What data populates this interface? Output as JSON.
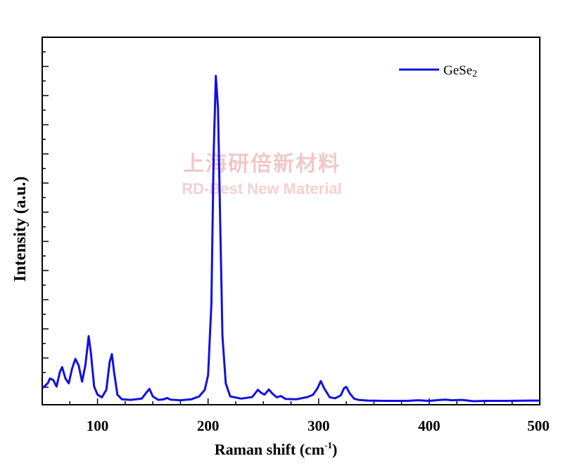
{
  "chart_data": {
    "type": "line",
    "title": "",
    "xlabel": "Raman shift (cm",
    "xlabel_sup": "-1",
    "xlabel_close": ")",
    "ylabel": "Intensity (a.u.)",
    "xlim": [
      50,
      500
    ],
    "ylim": [
      0,
      100
    ],
    "x_ticks": [
      100,
      200,
      300,
      400,
      500
    ],
    "y_ticks_shown": false,
    "grid": false,
    "legend_position": "top-right",
    "series": [
      {
        "name": "GeSe2",
        "color": "#1010e0",
        "points": [
          [
            50,
            4.0
          ],
          [
            55,
            5.5
          ],
          [
            57,
            7.0
          ],
          [
            60,
            6.5
          ],
          [
            63,
            4.5
          ],
          [
            66,
            9.0
          ],
          [
            68,
            10.5
          ],
          [
            71,
            7.0
          ],
          [
            74,
            5.5
          ],
          [
            77,
            10.0
          ],
          [
            80,
            13.0
          ],
          [
            83,
            11.0
          ],
          [
            86,
            6.0
          ],
          [
            89,
            11.0
          ],
          [
            92,
            20.0
          ],
          [
            94,
            15.0
          ],
          [
            97,
            4.5
          ],
          [
            100,
            2.0
          ],
          [
            104,
            1.2
          ],
          [
            108,
            3.5
          ],
          [
            111,
            12.0
          ],
          [
            113,
            14.5
          ],
          [
            115,
            9.0
          ],
          [
            118,
            2.0
          ],
          [
            122,
            0.6
          ],
          [
            130,
            0.4
          ],
          [
            140,
            0.8
          ],
          [
            145,
            3.0
          ],
          [
            147,
            3.8
          ],
          [
            150,
            1.5
          ],
          [
            155,
            0.4
          ],
          [
            160,
            0.6
          ],
          [
            163,
            1.0
          ],
          [
            166,
            0.5
          ],
          [
            175,
            0.3
          ],
          [
            185,
            0.6
          ],
          [
            192,
            1.5
          ],
          [
            197,
            3.5
          ],
          [
            200,
            8.0
          ],
          [
            203,
            30.0
          ],
          [
            205,
            75.0
          ],
          [
            207,
            100.0
          ],
          [
            209,
            90.0
          ],
          [
            211,
            55.0
          ],
          [
            213,
            20.0
          ],
          [
            216,
            5.5
          ],
          [
            220,
            1.5
          ],
          [
            230,
            0.8
          ],
          [
            240,
            1.3
          ],
          [
            245,
            3.5
          ],
          [
            248,
            2.6
          ],
          [
            251,
            2.0
          ],
          [
            255,
            3.6
          ],
          [
            258,
            2.4
          ],
          [
            262,
            1.2
          ],
          [
            266,
            1.6
          ],
          [
            270,
            0.7
          ],
          [
            280,
            0.6
          ],
          [
            290,
            1.3
          ],
          [
            295,
            2.0
          ],
          [
            299,
            4.0
          ],
          [
            302,
            6.2
          ],
          [
            305,
            4.0
          ],
          [
            310,
            1.2
          ],
          [
            315,
            0.9
          ],
          [
            320,
            1.8
          ],
          [
            323,
            4.0
          ],
          [
            325,
            4.4
          ],
          [
            328,
            2.5
          ],
          [
            332,
            0.8
          ],
          [
            336,
            0.4
          ],
          [
            345,
            0.2
          ],
          [
            360,
            0.1
          ],
          [
            380,
            0.1
          ],
          [
            390,
            0.3
          ],
          [
            400,
            0.1
          ],
          [
            410,
            0.4
          ],
          [
            415,
            0.5
          ],
          [
            420,
            0.3
          ],
          [
            430,
            0.4
          ],
          [
            440,
            0.0
          ],
          [
            450,
            0.1
          ],
          [
            470,
            0.1
          ],
          [
            490,
            0.2
          ],
          [
            500,
            0.2
          ]
        ]
      }
    ]
  },
  "legend": {
    "label": "GeSe",
    "label_sub": "2"
  },
  "watermark": {
    "cn": "上海研倍新材料",
    "en": "RD-Best New Material"
  },
  "colors": {
    "series": "#1010e0",
    "axis": "#000000",
    "watermark": "#f2c7c7"
  }
}
